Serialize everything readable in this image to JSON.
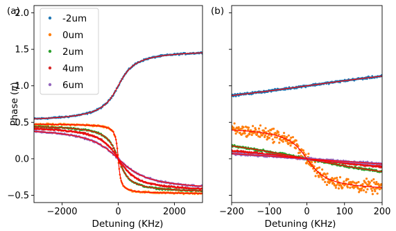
{
  "figure": {
    "y_label": "Phase (π)",
    "legend": [
      {
        "label": "-2um",
        "color": "#1f77b4"
      },
      {
        "label": "0um",
        "color": "#ff7f0e"
      },
      {
        "label": "2um",
        "color": "#2ca02c"
      },
      {
        "label": "4um",
        "color": "#d62728"
      },
      {
        "label": "6um",
        "color": "#9467bd"
      }
    ],
    "fit_color": "#ff0000"
  },
  "chart_data": [
    {
      "panel": "(a)",
      "type": "scatter",
      "xlabel": "Detuning (KHz)",
      "ylabel": "Phase (π)",
      "xlim": [
        -3000,
        3000
      ],
      "ylim": [
        -0.6,
        2.1
      ],
      "xticks": [
        -2000,
        0,
        2000
      ],
      "yticks": [
        -0.5,
        0.0,
        0.5,
        1.0,
        1.5,
        2.0
      ],
      "legend_position": "upper-left",
      "series": [
        {
          "name": "-2um",
          "color": "#1f77b4",
          "fit": {
            "offset": 1.0,
            "amp": 0.5,
            "width": 450,
            "sign": 1
          }
        },
        {
          "name": "0um",
          "color": "#ff7f0e",
          "fit": {
            "offset": 0.0,
            "amp": 0.48,
            "width": 70,
            "sign": -1
          }
        },
        {
          "name": "2um",
          "color": "#2ca02c",
          "fit": {
            "offset": 0.0,
            "amp": 0.47,
            "width": 300,
            "sign": -1
          }
        },
        {
          "name": "4um",
          "color": "#d62728",
          "fit": {
            "offset": 0.0,
            "amp": 0.46,
            "width": 500,
            "sign": -1
          }
        },
        {
          "name": "6um",
          "color": "#9467bd",
          "fit": {
            "offset": 0.0,
            "amp": 0.45,
            "width": 800,
            "sign": -1
          }
        }
      ]
    },
    {
      "panel": "(b)",
      "type": "scatter",
      "xlabel": "Detuning (KHz)",
      "ylabel": "",
      "xlim": [
        -200,
        200
      ],
      "ylim": [
        -0.6,
        2.1
      ],
      "xticks": [
        -200,
        -100,
        0,
        100,
        200
      ],
      "yticks": [],
      "series": [
        {
          "name": "-2um",
          "color": "#1f77b4",
          "fit": {
            "offset": 1.0,
            "amp": 0.5,
            "width": 450,
            "sign": 1
          }
        },
        {
          "name": "0um",
          "color": "#ff7f0e",
          "fit": {
            "offset": 0.0,
            "amp": 0.45,
            "width": 40,
            "sign": -1
          }
        },
        {
          "name": "2um",
          "color": "#2ca02c",
          "fit": {
            "offset": 0.0,
            "amp": 0.47,
            "width": 300,
            "sign": -1
          }
        },
        {
          "name": "4um",
          "color": "#d62728",
          "fit": {
            "offset": 0.0,
            "amp": 0.46,
            "width": 500,
            "sign": -1
          }
        },
        {
          "name": "6um",
          "color": "#9467bd",
          "fit": {
            "offset": 0.0,
            "amp": 0.45,
            "width": 800,
            "sign": -1
          }
        }
      ]
    }
  ]
}
